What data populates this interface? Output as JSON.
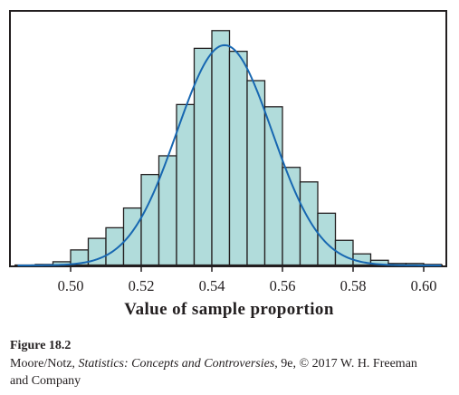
{
  "chart_data": {
    "type": "bar",
    "subtype": "histogram-with-density-curve",
    "xlabel": "Value of sample proportion",
    "xlim": [
      0.485,
      0.605
    ],
    "ylim": [
      0,
      100
    ],
    "x_ticks": [
      "0.50",
      "0.52",
      "0.54",
      "0.56",
      "0.58",
      "0.60"
    ],
    "x_tick_values": [
      0.5,
      0.52,
      0.54,
      0.56,
      0.58,
      0.6
    ],
    "y_axis_labels_shown": false,
    "grid": false,
    "bin_width": 0.005,
    "bins": [
      {
        "start": 0.49,
        "end": 0.495,
        "height": 0.4
      },
      {
        "start": 0.495,
        "end": 0.5,
        "height": 1.5
      },
      {
        "start": 0.5,
        "end": 0.505,
        "height": 6.3
      },
      {
        "start": 0.505,
        "end": 0.51,
        "height": 11.0
      },
      {
        "start": 0.51,
        "end": 0.515,
        "height": 15.3
      },
      {
        "start": 0.515,
        "end": 0.52,
        "height": 23.3
      },
      {
        "start": 0.52,
        "end": 0.525,
        "height": 36.9
      },
      {
        "start": 0.525,
        "end": 0.53,
        "height": 44.5
      },
      {
        "start": 0.53,
        "end": 0.535,
        "height": 65.3
      },
      {
        "start": 0.535,
        "end": 0.54,
        "height": 88.1
      },
      {
        "start": 0.54,
        "end": 0.545,
        "height": 95.3
      },
      {
        "start": 0.545,
        "end": 0.55,
        "height": 86.9
      },
      {
        "start": 0.55,
        "end": 0.555,
        "height": 75.0
      },
      {
        "start": 0.555,
        "end": 0.56,
        "height": 64.4
      },
      {
        "start": 0.56,
        "end": 0.565,
        "height": 39.8
      },
      {
        "start": 0.565,
        "end": 0.57,
        "height": 33.9
      },
      {
        "start": 0.57,
        "end": 0.575,
        "height": 21.2
      },
      {
        "start": 0.575,
        "end": 0.58,
        "height": 10.2
      },
      {
        "start": 0.58,
        "end": 0.585,
        "height": 4.7
      },
      {
        "start": 0.585,
        "end": 0.59,
        "height": 2.1
      },
      {
        "start": 0.59,
        "end": 0.595,
        "height": 0.8
      },
      {
        "start": 0.595,
        "end": 0.6,
        "height": 0.8
      },
      {
        "start": 0.6,
        "end": 0.605,
        "height": 0.4
      }
    ],
    "curve": {
      "type": "normal",
      "mean": 0.5436,
      "sd": 0.0135,
      "peak": 89.4
    },
    "colors": {
      "bar_fill": "#b1dcdb",
      "bar_stroke": "#231f20",
      "curve": "#1767b1",
      "frame": "#231f20"
    }
  },
  "caption": {
    "figure_label": "Figure 18.2",
    "credit_authors": "Moore/Notz, ",
    "credit_book": "Statistics: Concepts and Controversies",
    "credit_rest": ", 9e, © 2017 W. H. Freeman and Company"
  }
}
